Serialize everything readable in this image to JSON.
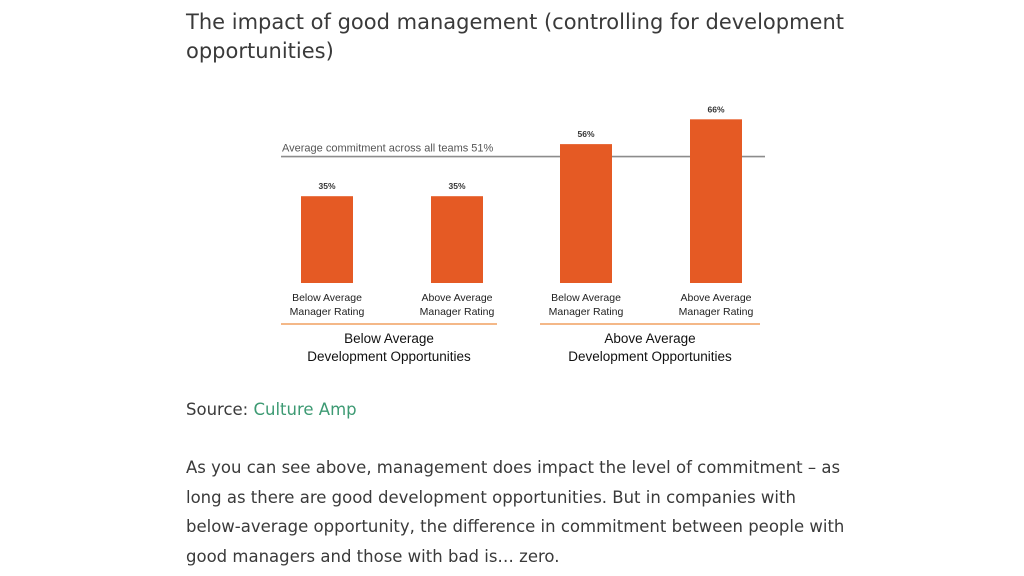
{
  "article": {
    "title": "The impact of good management (controlling for development opportunities)",
    "source_label": "Source:",
    "source_link_text": "Culture Amp",
    "paragraph": "As you can see above, management does impact the level of commitment – as long as there are good development opportunities.  But in companies with below-average opportunity, the difference in commitment between people with good managers and those with bad is… zero."
  },
  "colors": {
    "bar": "#e55a24",
    "reference_line": "#8c8c8c",
    "group_underline": "#f0a060",
    "text": "#3a3a3a",
    "link": "#3d9a73"
  },
  "chart_data": {
    "type": "bar",
    "categories": [
      [
        "Below Average",
        "Manager Rating"
      ],
      [
        "Above Average",
        "Manager Rating"
      ],
      [
        "Below Average",
        "Manager Rating"
      ],
      [
        "Above Average",
        "Manager Rating"
      ]
    ],
    "values": [
      35,
      35,
      56,
      66
    ],
    "data_labels": [
      "35%",
      "35%",
      "56%",
      "66%"
    ],
    "groups": [
      {
        "label": [
          "Below Average",
          "Development Opportunities"
        ],
        "categories": [
          0,
          1
        ]
      },
      {
        "label": [
          "Above Average",
          "Development Opportunities"
        ],
        "categories": [
          2,
          3
        ]
      }
    ],
    "reference_line": {
      "value": 51,
      "label": "Average commitment across all teams 51%"
    },
    "ylim": [
      0,
      70
    ],
    "grid": false,
    "legend": false
  }
}
